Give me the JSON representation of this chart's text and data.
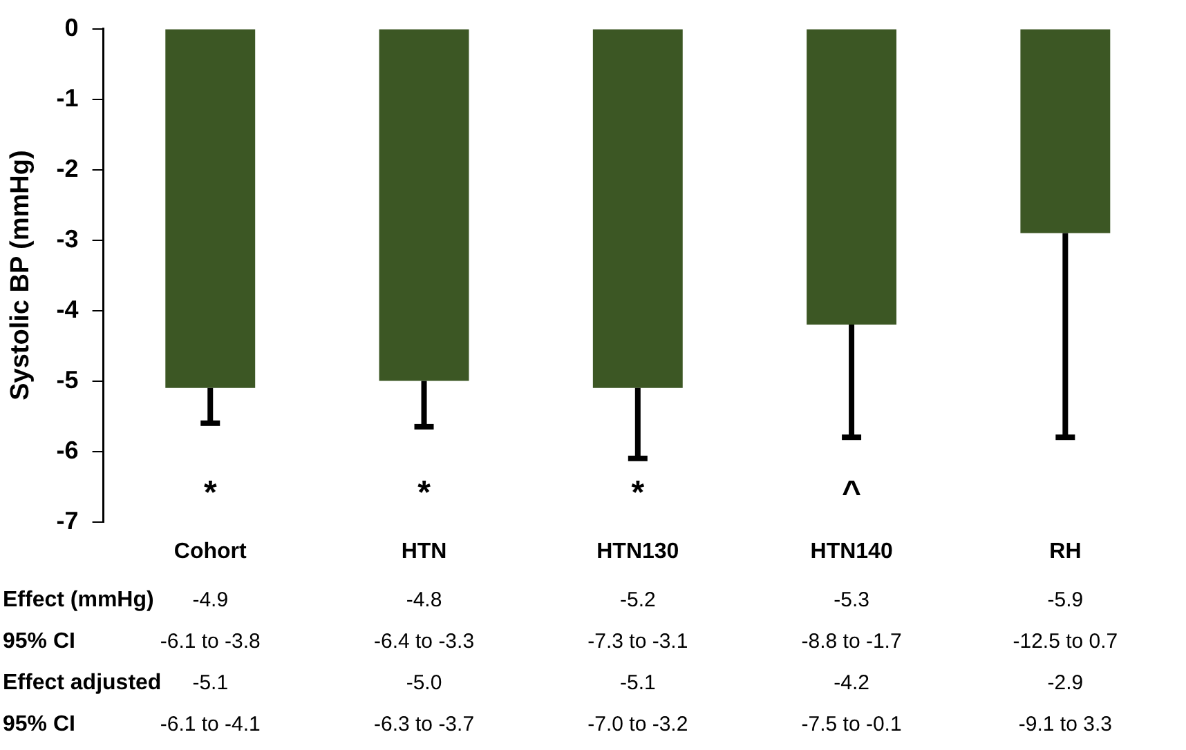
{
  "chart_data": {
    "type": "bar",
    "ylabel": "Systolic BP (mmHg)",
    "categories": [
      "Cohort",
      "HTN",
      "HTN130",
      "HTN140",
      "RH"
    ],
    "values": [
      -5.1,
      -5.0,
      -5.1,
      -4.2,
      -2.9
    ],
    "color": "#3c5724",
    "errors": [
      [
        -5.6,
        -5.1
      ],
      [
        -5.65,
        -5.0
      ],
      [
        -6.1,
        -5.1
      ],
      [
        -5.8,
        -4.2
      ],
      [
        -5.8,
        -2.9
      ]
    ],
    "ylim": [
      -7,
      0
    ],
    "yticks": [
      0,
      -1,
      -2,
      -3,
      -4,
      -5,
      -6,
      -7
    ],
    "grid": false,
    "legend": false,
    "annotations": [
      "*",
      "*",
      "*",
      "^",
      "Effect (mmHg)",
      "-4.9",
      "-4.8",
      "-5.2",
      "-5.3",
      "-5.9",
      "95% CI",
      "-6.1 to -3.8",
      "-6.4 to -3.3",
      "-7.3 to -3.1",
      "-8.8 to -1.7",
      "-12.5 to 0.7",
      "Effect adjusted",
      "-5.1",
      "-5.0",
      "-5.1",
      "-4.2",
      "-2.9",
      "95% CI",
      "-6.1 to -4.1",
      "-6.3 to -3.7",
      "-7.0 to -3.2",
      "-7.5 to -0.1",
      "-9.1 to 3.3"
    ]
  }
}
